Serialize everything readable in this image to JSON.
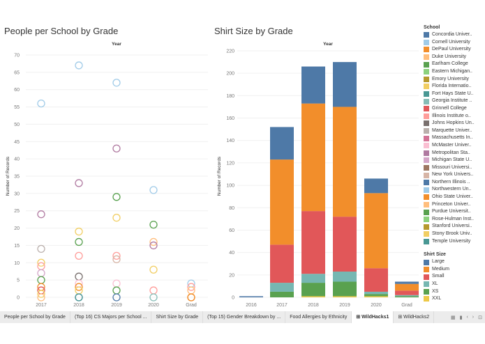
{
  "chart_data": [
    {
      "type": "scatter",
      "title": "People per School by Grade",
      "column_header": "Year",
      "xlabel": "",
      "ylabel": "Number of Records",
      "categories": [
        "2017",
        "2018",
        "2019",
        "2020",
        "Grad"
      ],
      "ylim": [
        0,
        70
      ],
      "yticks": [
        0,
        5,
        10,
        15,
        20,
        25,
        30,
        35,
        40,
        45,
        50,
        55,
        60,
        65,
        70
      ],
      "grid": true,
      "marker": "open-circle",
      "points": [
        {
          "x": "2017",
          "y": 56,
          "school": "Cornell University"
        },
        {
          "x": "2017",
          "y": 24,
          "school": "Metropolitan Sta.."
        },
        {
          "x": "2017",
          "y": 14,
          "school": "Marquette Univer.."
        },
        {
          "x": "2017",
          "y": 10,
          "school": "Florida Internatio.."
        },
        {
          "x": "2017",
          "y": 9,
          "school": "Illinois Institute o.."
        },
        {
          "x": "2017",
          "y": 7,
          "school": "Michigan State U.."
        },
        {
          "x": "2017",
          "y": 5,
          "school": "Earlham College"
        },
        {
          "x": "2017",
          "y": 3,
          "school": "DePaul University"
        },
        {
          "x": "2017",
          "y": 2,
          "school": "Grinnell College"
        },
        {
          "x": "2017",
          "y": 1,
          "school": "Florida Internatio.."
        },
        {
          "x": "2017",
          "y": 0,
          "school": "Duke University"
        },
        {
          "x": "2018",
          "y": 67,
          "school": "Cornell University"
        },
        {
          "x": "2018",
          "y": 33,
          "school": "Metropolitan Sta.."
        },
        {
          "x": "2018",
          "y": 19,
          "school": "Florida Internatio.."
        },
        {
          "x": "2018",
          "y": 16,
          "school": "Earlham College"
        },
        {
          "x": "2018",
          "y": 12,
          "school": "Illinois Institute o.."
        },
        {
          "x": "2018",
          "y": 6,
          "school": "Johns Hopkins Un.."
        },
        {
          "x": "2018",
          "y": 4,
          "school": "McMaster Univer.."
        },
        {
          "x": "2018",
          "y": 3,
          "school": "DePaul University"
        },
        {
          "x": "2018",
          "y": 2,
          "school": "Florida Internatio.."
        },
        {
          "x": "2018",
          "y": 0,
          "school": "Concordia Univer.."
        },
        {
          "x": "2018",
          "y": 0,
          "school": "Fort Hays State U.."
        },
        {
          "x": "2019",
          "y": 62,
          "school": "Cornell University"
        },
        {
          "x": "2019",
          "y": 43,
          "school": "Metropolitan Sta.."
        },
        {
          "x": "2019",
          "y": 29,
          "school": "Earlham College"
        },
        {
          "x": "2019",
          "y": 23,
          "school": "Florida Internatio.."
        },
        {
          "x": "2019",
          "y": 12,
          "school": "Illinois Institute o.."
        },
        {
          "x": "2019",
          "y": 11,
          "school": "New York Univers.."
        },
        {
          "x": "2019",
          "y": 4,
          "school": "McMaster Univer.."
        },
        {
          "x": "2019",
          "y": 2,
          "school": "Earlham College"
        },
        {
          "x": "2019",
          "y": 0,
          "school": "Concordia Univer.."
        },
        {
          "x": "2020",
          "y": 31,
          "school": "Cornell University"
        },
        {
          "x": "2020",
          "y": 21,
          "school": "Earlham College"
        },
        {
          "x": "2020",
          "y": 16,
          "school": "Duke University"
        },
        {
          "x": "2020",
          "y": 15,
          "school": "Metropolitan Sta.."
        },
        {
          "x": "2020",
          "y": 8,
          "school": "Florida Internatio.."
        },
        {
          "x": "2020",
          "y": 2,
          "school": "Illinois Institute o.."
        },
        {
          "x": "2020",
          "y": 0,
          "school": "Georgia Institute .."
        },
        {
          "x": "Grad",
          "y": 4,
          "school": "Cornell University"
        },
        {
          "x": "Grad",
          "y": 3,
          "school": "Illinois Institute o.."
        },
        {
          "x": "Grad",
          "y": 2,
          "school": "Duke University"
        },
        {
          "x": "Grad",
          "y": 0,
          "school": "DePaul University"
        },
        {
          "x": "Grad",
          "y": 0,
          "school": "Ohio State Univer.."
        }
      ]
    },
    {
      "type": "bar",
      "stacked": true,
      "title": "Shirt Size by Grade",
      "column_header": "Year",
      "xlabel": "",
      "ylabel": "Number of Records",
      "categories": [
        "2016",
        "2017",
        "2018",
        "2019",
        "2020",
        "Grad"
      ],
      "ylim": [
        0,
        220
      ],
      "yticks": [
        0,
        20,
        40,
        60,
        80,
        100,
        120,
        140,
        160,
        180,
        200,
        220
      ],
      "grid": true,
      "series": [
        {
          "name": "XXL",
          "values": [
            0,
            0,
            1,
            1,
            1,
            0
          ]
        },
        {
          "name": "XS",
          "values": [
            0,
            5,
            12,
            13,
            2,
            1
          ]
        },
        {
          "name": "XL",
          "values": [
            0,
            8,
            8,
            9,
            2,
            1
          ]
        },
        {
          "name": "Small",
          "values": [
            0,
            34,
            56,
            49,
            21,
            4
          ]
        },
        {
          "name": "Medium",
          "values": [
            0,
            76,
            96,
            98,
            67,
            6
          ]
        },
        {
          "name": "Large",
          "values": [
            1,
            29,
            33,
            40,
            13,
            2
          ]
        }
      ]
    }
  ],
  "legend_school": {
    "title": "School",
    "items": [
      {
        "label": "Concordia Univer..",
        "color": "#4e79a7"
      },
      {
        "label": "Cornell University",
        "color": "#a0cbe8"
      },
      {
        "label": "DePaul University",
        "color": "#f28e2b"
      },
      {
        "label": "Duke University",
        "color": "#ffbe7d"
      },
      {
        "label": "Earlham College",
        "color": "#59a14f"
      },
      {
        "label": "Eastern Michigan..",
        "color": "#8cd17d"
      },
      {
        "label": "Emory University",
        "color": "#b6992d"
      },
      {
        "label": "Florida Internatio..",
        "color": "#f1ce63"
      },
      {
        "label": "Fort Hays State U..",
        "color": "#499894"
      },
      {
        "label": "Georgia Institute ..",
        "color": "#86bcb6"
      },
      {
        "label": "Grinnell College",
        "color": "#e15759"
      },
      {
        "label": "Illinois Institute o..",
        "color": "#ff9d9a"
      },
      {
        "label": "Johns Hopkins Un..",
        "color": "#79706e"
      },
      {
        "label": "Marquette Univer..",
        "color": "#bab0ac"
      },
      {
        "label": "Massachusetts In..",
        "color": "#d37295"
      },
      {
        "label": "McMaster Univer..",
        "color": "#fabfd2"
      },
      {
        "label": "Metropolitan Sta..",
        "color": "#b07aa1"
      },
      {
        "label": "Michigan State U..",
        "color": "#d4a6c8"
      },
      {
        "label": "Missouri Universi..",
        "color": "#9d7660"
      },
      {
        "label": "New York Univers..",
        "color": "#d7b5a6"
      },
      {
        "label": "Northern Illinois ..",
        "color": "#4e79a7"
      },
      {
        "label": "Northwestern Un..",
        "color": "#a0cbe8"
      },
      {
        "label": "Ohio State Univer..",
        "color": "#f28e2b"
      },
      {
        "label": "Princeton Univer..",
        "color": "#ffbe7d"
      },
      {
        "label": "Purdue Universit..",
        "color": "#59a14f"
      },
      {
        "label": "Rose-Hulman Inst..",
        "color": "#8cd17d"
      },
      {
        "label": "Stanford Universi..",
        "color": "#b6992d"
      },
      {
        "label": "Stony Brook Univ..",
        "color": "#f1ce63"
      },
      {
        "label": "Temple University",
        "color": "#499894"
      }
    ]
  },
  "legend_shirt": {
    "title": "Shirt Size",
    "items": [
      {
        "label": "Large",
        "color": "#4e79a7"
      },
      {
        "label": "Medium",
        "color": "#f28e2b"
      },
      {
        "label": "Small",
        "color": "#e15759"
      },
      {
        "label": "XL",
        "color": "#76b7b2"
      },
      {
        "label": "XS",
        "color": "#59a14f"
      },
      {
        "label": "XXL",
        "color": "#edc948"
      }
    ]
  },
  "tabs": [
    {
      "label": "People per School by Grade",
      "active": false
    },
    {
      "label": "(Top 16) CS Majors per School ...",
      "active": false
    },
    {
      "label": "Shirt Size by Grade",
      "active": false
    },
    {
      "label": "(Top 15) Gender Breakdown by ...",
      "active": false
    },
    {
      "label": "Food Allergies by Ethnicity",
      "active": false
    },
    {
      "label": "⊞ WildHacks1",
      "active": true
    },
    {
      "label": "⊞ WildHacks2",
      "active": false
    }
  ],
  "tab_controls": [
    "▦",
    "▮",
    "‹",
    "›",
    "⊡"
  ]
}
